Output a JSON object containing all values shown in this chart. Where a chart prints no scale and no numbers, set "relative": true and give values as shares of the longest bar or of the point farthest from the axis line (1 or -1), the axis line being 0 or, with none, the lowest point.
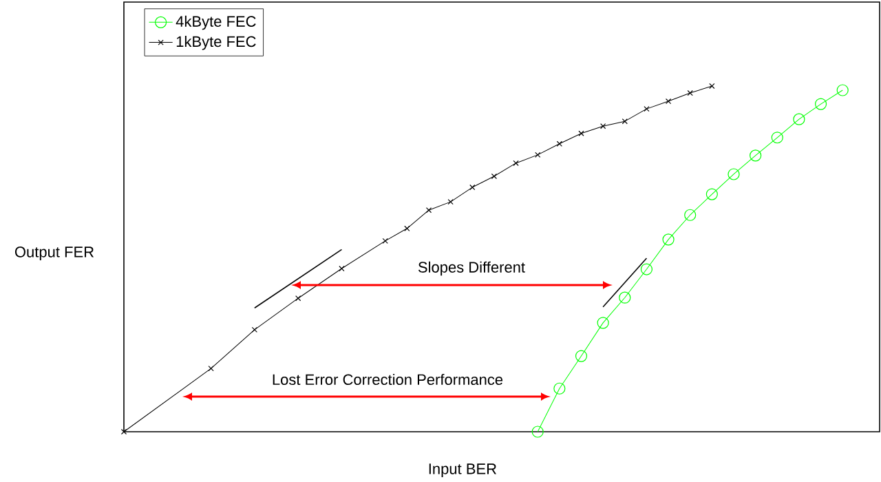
{
  "chart_data": {
    "type": "line",
    "relative": true,
    "xlabel": "Input BER",
    "ylabel": "Output FER",
    "categories": [
      null,
      null,
      null,
      null,
      null,
      null,
      null,
      null,
      null,
      null,
      null,
      null,
      null,
      null,
      null,
      null,
      null,
      null,
      null,
      null,
      null,
      null,
      null,
      null,
      null,
      null,
      null,
      null,
      null,
      null,
      null,
      null,
      null,
      null,
      null
    ],
    "series": [
      {
        "name": "4kByte FEC",
        "color": "#00ff00",
        "marker": "circle",
        "values": [
          null,
          null,
          null,
          null,
          null,
          null,
          null,
          null,
          null,
          null,
          null,
          null,
          null,
          null,
          null,
          null,
          null,
          null,
          null,
          0,
          0.125,
          0.219,
          0.315,
          0.388,
          0.47,
          0.556,
          0.627,
          0.687,
          0.745,
          0.799,
          0.851,
          0.904,
          0.948,
          0.988,
          null
        ]
      },
      {
        "name": "1kByte FEC",
        "color": "#000000",
        "marker": "cross",
        "values": [
          0,
          null,
          null,
          null,
          0.183,
          null,
          0.295,
          null,
          0.386,
          null,
          0.472,
          null,
          0.552,
          0.588,
          0.641,
          0.665,
          0.707,
          0.739,
          0.777,
          0.801,
          0.833,
          0.863,
          0.884,
          0.898,
          0.934,
          0.956,
          0.98,
          1.0,
          null,
          null,
          null,
          null,
          null,
          null,
          null
        ]
      },
      {
        "type": "line",
        "color": "#000000",
        "marker": "none",
        "values": [
          null,
          null,
          null,
          null,
          null,
          null,
          0.358,
          null,
          null,
          null,
          0.527,
          null,
          null,
          null,
          null,
          null,
          null,
          null,
          null,
          null,
          null,
          null,
          null,
          null,
          null,
          null,
          null,
          null,
          null,
          null,
          null,
          null,
          null,
          null,
          null
        ]
      },
      {
        "type": "line",
        "color": "#000000",
        "marker": "none",
        "values": [
          null,
          null,
          null,
          null,
          null,
          null,
          null,
          null,
          null,
          null,
          null,
          null,
          null,
          null,
          null,
          null,
          null,
          null,
          null,
          null,
          null,
          null,
          0.361,
          null,
          0.502,
          null,
          null,
          null,
          null,
          null,
          null,
          null,
          null,
          null,
          null
        ]
      }
    ],
    "legend": "top left",
    "line_style": "solid",
    "annotations": [
      "Slopes Different",
      "Lost Error Correction Performance"
    ]
  }
}
